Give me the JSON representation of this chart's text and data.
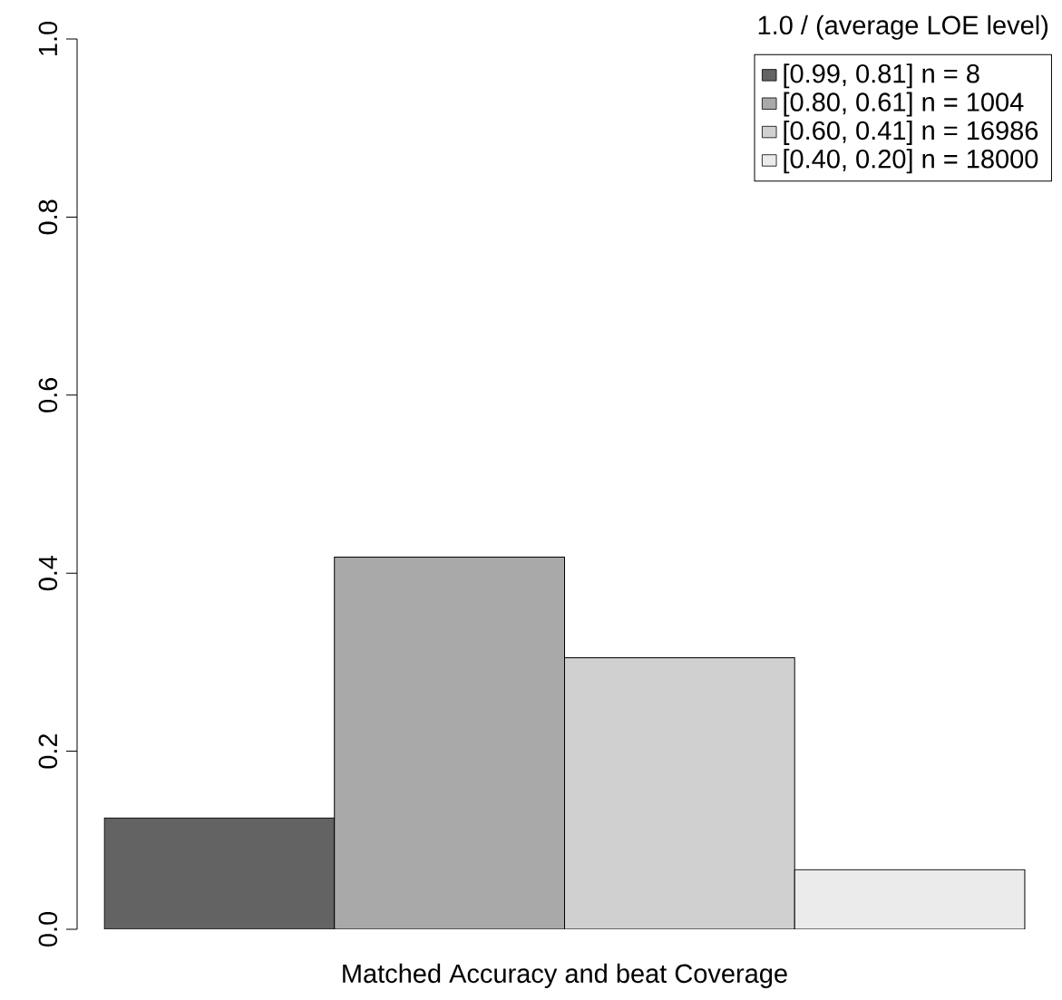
{
  "chart_data": {
    "type": "bar",
    "xlabel": "Matched Accuracy and beat Coverage",
    "legend_title": "1.0 / (average LOE level)",
    "categories": [
      null
    ],
    "series": [
      {
        "name": "[0.99, 0.81] n = 8",
        "color": "#636363",
        "values": [
          0.125
        ]
      },
      {
        "name": "[0.80, 0.61] n = 1004",
        "color": "#a9a9a9",
        "values": [
          0.418
        ]
      },
      {
        "name": "[0.60, 0.41] n = 16986",
        "color": "#d0d0d0",
        "values": [
          0.305
        ]
      },
      {
        "name": "[0.40, 0.20] n = 18000",
        "color": "#ebebeb",
        "values": [
          0.067
        ]
      }
    ],
    "ylim": [
      0,
      1.0
    ],
    "yticks": [
      {
        "value": 0,
        "label": "0.0"
      },
      0.2,
      0.4,
      0.6,
      0.8,
      {
        "value": 1.0,
        "label": "1.0"
      }
    ],
    "legend": "top right",
    "grid": false
  }
}
